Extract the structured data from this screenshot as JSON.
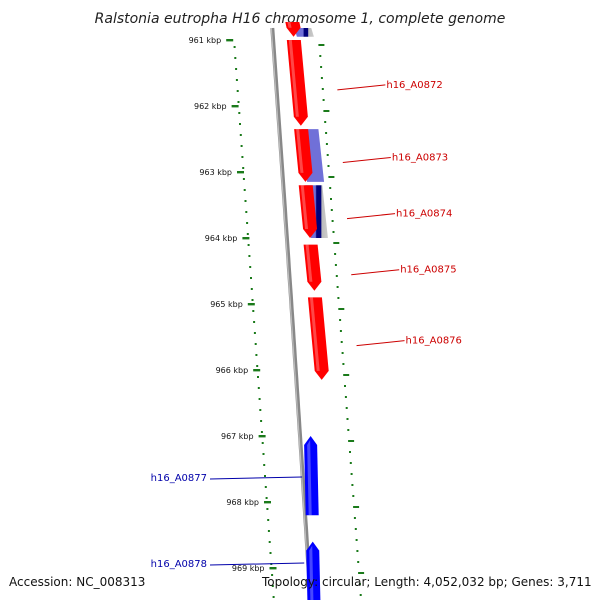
{
  "title": "Ralstonia eutropha H16 chromosome 1, complete genome",
  "accession_text": "Accession: NC_008313",
  "topology_text": "Topology: circular; Length: 4,052,032 bp; Genes: 3,711",
  "colors": {
    "forward_gene": "#ff0000",
    "reverse_gene": "#0000ff",
    "forward_label": "#cc0000",
    "reverse_label": "#0000aa",
    "feature_light": "#7070d8",
    "feature_dark": "#00007a",
    "tick": "#1a7a1a",
    "backbone": "#888888"
  },
  "ticks": [
    "961 kbp",
    "962 kbp",
    "963 kbp",
    "964 kbp",
    "965 kbp",
    "966 kbp",
    "967 kbp",
    "968 kbp",
    "969 kbp"
  ],
  "genes": [
    {
      "name": "",
      "strand": "+",
      "start_kbp": 960.55,
      "end_kbp": 960.95
    },
    {
      "name": "h16_A0872",
      "strand": "+",
      "start_kbp": 961.0,
      "end_kbp": 962.3
    },
    {
      "name": "h16_A0873",
      "strand": "+",
      "start_kbp": 962.35,
      "end_kbp": 963.15
    },
    {
      "name": "h16_A0874",
      "strand": "+",
      "start_kbp": 963.2,
      "end_kbp": 964.0
    },
    {
      "name": "h16_A0875",
      "strand": "+",
      "start_kbp": 964.1,
      "end_kbp": 964.8
    },
    {
      "name": "h16_A0876",
      "strand": "+",
      "start_kbp": 964.9,
      "end_kbp": 966.15
    },
    {
      "name": "h16_A0877",
      "strand": "-",
      "start_kbp": 967.0,
      "end_kbp": 968.2
    },
    {
      "name": "h16_A0878",
      "strand": "-",
      "start_kbp": 968.6,
      "end_kbp": 969.5
    }
  ],
  "features": [
    {
      "start_kbp": 960.45,
      "end_kbp": 960.95,
      "shade": "mixed"
    },
    {
      "start_kbp": 962.35,
      "end_kbp": 963.15,
      "shade": "light"
    },
    {
      "start_kbp": 963.2,
      "end_kbp": 964.0,
      "shade": "mixed"
    }
  ]
}
